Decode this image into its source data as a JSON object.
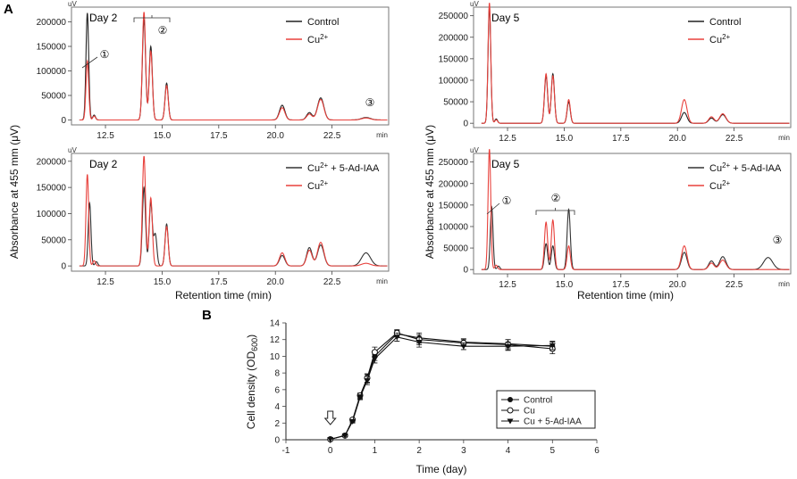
{
  "panel_labels": {
    "a": "A",
    "b": "B"
  },
  "shared": {
    "y_label": "Absorbance at 455 mm (μV)",
    "x_label": "Retention time (min)",
    "x_unit": "min",
    "y_unit": "uV"
  },
  "colors": {
    "control": "#222222",
    "cu": "#e8413c",
    "ad": "#333333",
    "frame": "#777777"
  },
  "chart_data": [
    {
      "type": "line",
      "id": "day2-top",
      "title": "Day 2",
      "xlim": [
        11.0,
        25.0
      ],
      "ylim": [
        -10000,
        230000
      ],
      "x_ticks": [
        "12.5",
        "15.0",
        "17.5",
        "20.0",
        "22.5"
      ],
      "y_ticks": [
        "0",
        "50000",
        "100000",
        "150000",
        "200000"
      ],
      "legend": [
        {
          "name": "Control",
          "sup": "",
          "color": "#222222"
        },
        {
          "name": "Cu",
          "sup": "2+",
          "color": "#e8413c"
        }
      ],
      "peak_labels": [
        "①",
        "②",
        "③"
      ],
      "series": [
        {
          "name": "Control",
          "color": "#222222",
          "peaks": [
            [
              11.7,
              218000,
              0.06
            ],
            [
              12.0,
              10000,
              0.06
            ],
            [
              14.2,
              205000,
              0.07
            ],
            [
              14.5,
              150000,
              0.07
            ],
            [
              15.2,
              75000,
              0.07
            ],
            [
              20.3,
              30000,
              0.12
            ],
            [
              21.5,
              15000,
              0.12
            ],
            [
              22.0,
              45000,
              0.14
            ],
            [
              24.0,
              5000,
              0.2
            ]
          ]
        },
        {
          "name": "Cu2+",
          "color": "#e8413c",
          "peaks": [
            [
              11.7,
              120000,
              0.06
            ],
            [
              12.0,
              8000,
              0.06
            ],
            [
              14.2,
              220000,
              0.07
            ],
            [
              14.5,
              140000,
              0.07
            ],
            [
              15.2,
              70000,
              0.07
            ],
            [
              20.3,
              25000,
              0.12
            ],
            [
              21.5,
              12000,
              0.12
            ],
            [
              22.0,
              42000,
              0.14
            ],
            [
              24.0,
              4000,
              0.2
            ]
          ]
        }
      ]
    },
    {
      "type": "line",
      "id": "day5-top",
      "title": "Day 5",
      "xlim": [
        11.0,
        25.0
      ],
      "ylim": [
        -10000,
        270000
      ],
      "x_ticks": [
        "12.5",
        "15.0",
        "17.5",
        "20.0",
        "22.5"
      ],
      "y_ticks": [
        "0",
        "50000",
        "100000",
        "150000",
        "200000",
        "250000"
      ],
      "legend": [
        {
          "name": "Control",
          "sup": "",
          "color": "#222222"
        },
        {
          "name": "Cu",
          "sup": "2+",
          "color": "#e8413c"
        }
      ],
      "peak_labels": [],
      "series": [
        {
          "name": "Control",
          "color": "#222222",
          "peaks": [
            [
              11.7,
              270000,
              0.06
            ],
            [
              12.0,
              10000,
              0.06
            ],
            [
              14.2,
              110000,
              0.07
            ],
            [
              14.5,
              115000,
              0.07
            ],
            [
              15.2,
              50000,
              0.07
            ],
            [
              20.3,
              25000,
              0.12
            ],
            [
              21.5,
              12000,
              0.12
            ],
            [
              22.0,
              20000,
              0.14
            ]
          ]
        },
        {
          "name": "Cu2+",
          "color": "#e8413c",
          "peaks": [
            [
              11.7,
              280000,
              0.06
            ],
            [
              12.0,
              8000,
              0.06
            ],
            [
              14.2,
              115000,
              0.07
            ],
            [
              14.5,
              110000,
              0.07
            ],
            [
              15.2,
              55000,
              0.07
            ],
            [
              20.3,
              55000,
              0.12
            ],
            [
              21.5,
              15000,
              0.12
            ],
            [
              22.0,
              22000,
              0.14
            ]
          ]
        }
      ]
    },
    {
      "type": "line",
      "id": "day2-bottom",
      "title": "Day 2",
      "xlim": [
        11.0,
        25.0
      ],
      "ylim": [
        -10000,
        215000
      ],
      "x_ticks": [
        "12.5",
        "15.0",
        "17.5",
        "20.0",
        "22.5"
      ],
      "y_ticks": [
        "0",
        "50000",
        "100000",
        "150000",
        "200000"
      ],
      "legend": [
        {
          "name": "Cu",
          "sup": "2+",
          "extra": " + 5-Ad-IAA",
          "color": "#333333"
        },
        {
          "name": "Cu",
          "sup": "2+",
          "color": "#e8413c"
        }
      ],
      "peak_labels": [],
      "series": [
        {
          "name": "Cu2+ + 5-Ad-IAA",
          "color": "#333333",
          "peaks": [
            [
              11.8,
              120000,
              0.06
            ],
            [
              12.1,
              8000,
              0.06
            ],
            [
              14.2,
              150000,
              0.07
            ],
            [
              14.5,
              120000,
              0.07
            ],
            [
              14.7,
              60000,
              0.07
            ],
            [
              15.2,
              80000,
              0.07
            ],
            [
              20.3,
              20000,
              0.12
            ],
            [
              21.5,
              35000,
              0.12
            ],
            [
              22.0,
              40000,
              0.14
            ],
            [
              24.0,
              25000,
              0.2
            ]
          ]
        },
        {
          "name": "Cu2+",
          "color": "#e8413c",
          "peaks": [
            [
              11.7,
              175000,
              0.06
            ],
            [
              12.0,
              10000,
              0.06
            ],
            [
              14.2,
              210000,
              0.07
            ],
            [
              14.5,
              130000,
              0.07
            ],
            [
              15.2,
              75000,
              0.07
            ],
            [
              20.3,
              25000,
              0.12
            ],
            [
              21.5,
              30000,
              0.12
            ],
            [
              22.0,
              45000,
              0.14
            ],
            [
              24.0,
              5000,
              0.2
            ]
          ]
        }
      ]
    },
    {
      "type": "line",
      "id": "day5-bottom",
      "title": "Day 5",
      "xlim": [
        11.0,
        25.0
      ],
      "ylim": [
        -10000,
        270000
      ],
      "x_ticks": [
        "12.5",
        "15.0",
        "17.5",
        "20.0",
        "22.5"
      ],
      "y_ticks": [
        "0",
        "50000",
        "100000",
        "150000",
        "200000",
        "250000"
      ],
      "legend": [
        {
          "name": "Cu",
          "sup": "2+",
          "extra": " + 5-Ad-IAA",
          "color": "#333333"
        },
        {
          "name": "Cu",
          "sup": "2+",
          "color": "#e8413c"
        }
      ],
      "peak_labels": [
        "①",
        "②",
        "③"
      ],
      "series": [
        {
          "name": "Cu2+ + 5-Ad-IAA",
          "color": "#333333",
          "peaks": [
            [
              11.8,
              145000,
              0.06
            ],
            [
              12.1,
              8000,
              0.06
            ],
            [
              14.2,
              60000,
              0.07
            ],
            [
              14.5,
              55000,
              0.07
            ],
            [
              15.2,
              140000,
              0.07
            ],
            [
              20.3,
              40000,
              0.12
            ],
            [
              21.5,
              20000,
              0.12
            ],
            [
              22.0,
              30000,
              0.14
            ],
            [
              24.0,
              28000,
              0.2
            ]
          ]
        },
        {
          "name": "Cu2+",
          "color": "#e8413c",
          "peaks": [
            [
              11.7,
              280000,
              0.06
            ],
            [
              12.0,
              10000,
              0.06
            ],
            [
              14.2,
              110000,
              0.07
            ],
            [
              14.5,
              115000,
              0.07
            ],
            [
              15.2,
              55000,
              0.07
            ],
            [
              20.3,
              55000,
              0.12
            ],
            [
              21.5,
              15000,
              0.12
            ],
            [
              22.0,
              22000,
              0.14
            ]
          ]
        }
      ]
    },
    {
      "type": "line",
      "id": "growth",
      "title": "",
      "xlabel": "Time (day)",
      "ylabel": "Cell density (OD",
      "ylabel_sub": "600",
      "ylabel_close": ")",
      "xlim": [
        -1,
        6
      ],
      "ylim": [
        0,
        14
      ],
      "x_ticks": [
        "-1",
        "0",
        "1",
        "2",
        "3",
        "4",
        "5",
        "6"
      ],
      "y_ticks": [
        "0",
        "2",
        "4",
        "6",
        "8",
        "10",
        "12",
        "14"
      ],
      "x": [
        0,
        0.33,
        0.5,
        0.67,
        0.83,
        1,
        1.5,
        2,
        3,
        4,
        5
      ],
      "series": [
        {
          "name": "Control",
          "marker": "circle-filled",
          "values": [
            0.05,
            0.5,
            2.3,
            5.2,
            7.3,
            10.0,
            12.7,
            12.2,
            11.7,
            11.5,
            11.2
          ],
          "err": [
            0,
            0.1,
            0.2,
            0.3,
            0.5,
            0.5,
            0.4,
            0.6,
            0.4,
            0.5,
            0.5
          ]
        },
        {
          "name": "Cu",
          "marker": "circle-open",
          "values": [
            0.05,
            0.5,
            2.4,
            5.3,
            7.4,
            10.5,
            12.8,
            12.0,
            11.6,
            11.4,
            10.9
          ],
          "err": [
            0,
            0.1,
            0.2,
            0.3,
            0.5,
            0.6,
            0.4,
            0.6,
            0.4,
            0.6,
            0.6
          ]
        },
        {
          "name": "Cu + 5-Ad-IAA",
          "marker": "triangle-down",
          "values": [
            0.05,
            0.5,
            2.2,
            5.1,
            7.1,
            9.7,
            12.3,
            11.7,
            11.2,
            11.2,
            11.3
          ],
          "err": [
            0,
            0.1,
            0.2,
            0.3,
            0.5,
            0.5,
            0.5,
            0.6,
            0.4,
            0.5,
            0.5
          ]
        }
      ],
      "arrow_marker_x": 0,
      "legend": [
        "Control",
        "Cu",
        "Cu + 5-Ad-IAA"
      ]
    }
  ]
}
